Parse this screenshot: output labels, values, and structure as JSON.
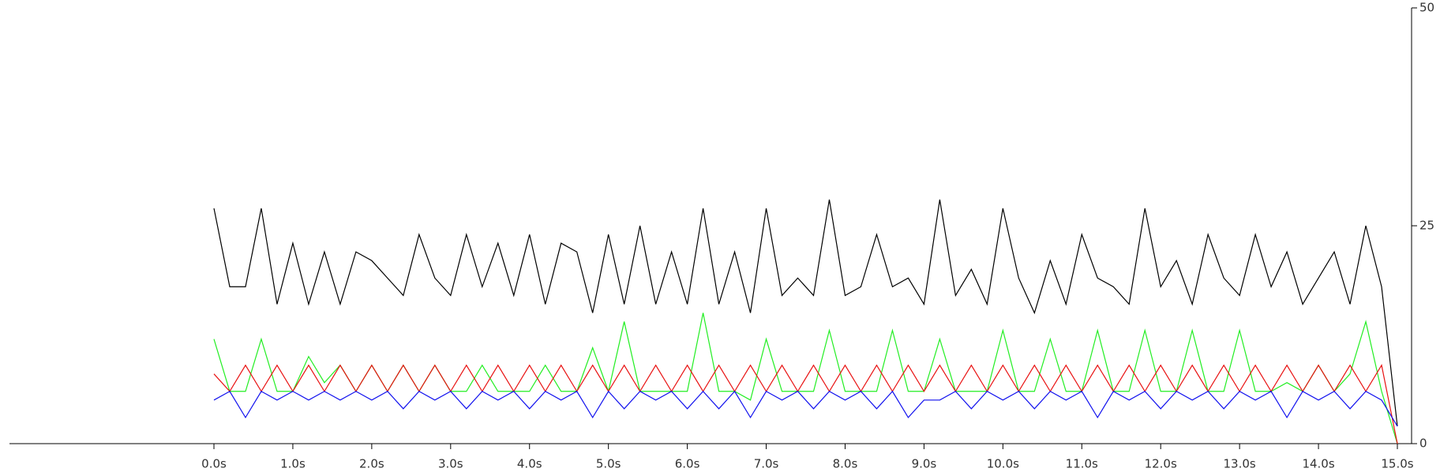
{
  "chart_data": {
    "type": "line",
    "x": [
      0,
      0.2,
      0.4,
      0.6,
      0.8,
      1.0,
      1.2,
      1.4,
      1.6,
      1.8,
      2.0,
      2.2,
      2.4,
      2.6,
      2.8,
      3.0,
      3.2,
      3.4,
      3.6,
      3.8,
      4.0,
      4.2,
      4.4,
      4.6,
      4.8,
      5.0,
      5.2,
      5.4,
      5.6,
      5.8,
      6.0,
      6.2,
      6.4,
      6.6,
      6.8,
      7.0,
      7.2,
      7.4,
      7.6,
      7.8,
      8.0,
      8.2,
      8.4,
      8.6,
      8.8,
      9.0,
      9.2,
      9.4,
      9.6,
      9.8,
      10.0,
      10.2,
      10.4,
      10.6,
      10.8,
      11.0,
      11.2,
      11.4,
      11.6,
      11.8,
      12.0,
      12.2,
      12.4,
      12.6,
      12.8,
      13.0,
      13.2,
      13.4,
      13.6,
      13.8,
      14.0,
      14.2,
      14.4,
      14.6,
      14.8,
      15.0
    ],
    "series": [
      {
        "color": "#000000",
        "values": [
          27,
          18,
          18,
          27,
          16,
          23,
          16,
          22,
          16,
          22,
          21,
          19,
          17,
          24,
          19,
          17,
          24,
          18,
          23,
          17,
          24,
          16,
          23,
          22,
          15,
          24,
          16,
          25,
          16,
          22,
          16,
          27,
          16,
          22,
          15,
          27,
          17,
          19,
          17,
          28,
          17,
          18,
          24,
          18,
          19,
          16,
          28,
          17,
          20,
          16,
          27,
          19,
          15,
          21,
          16,
          24,
          19,
          18,
          16,
          27,
          18,
          21,
          16,
          24,
          19,
          17,
          24,
          18,
          22,
          16,
          19,
          22,
          16,
          25,
          18,
          2
        ]
      },
      {
        "color": "#22ee22",
        "values": [
          12,
          6,
          6,
          12,
          6,
          6,
          10,
          7,
          9,
          6,
          9,
          6,
          9,
          6,
          9,
          6,
          6,
          9,
          6,
          6,
          6,
          9,
          6,
          6,
          11,
          6,
          14,
          6,
          6,
          6,
          6,
          15,
          6,
          6,
          5,
          12,
          6,
          6,
          6,
          13,
          6,
          6,
          6,
          13,
          6,
          6,
          12,
          6,
          6,
          6,
          13,
          6,
          6,
          12,
          6,
          6,
          13,
          6,
          6,
          13,
          6,
          6,
          13,
          6,
          6,
          13,
          6,
          6,
          7,
          6,
          9,
          6,
          8,
          14,
          6,
          0
        ]
      },
      {
        "color": "#e81010",
        "values": [
          8,
          6,
          9,
          6,
          9,
          6,
          9,
          6,
          9,
          6,
          9,
          6,
          9,
          6,
          9,
          6,
          9,
          6,
          9,
          6,
          9,
          6,
          9,
          6,
          9,
          6,
          9,
          6,
          9,
          6,
          9,
          6,
          9,
          6,
          9,
          6,
          9,
          6,
          9,
          6,
          9,
          6,
          9,
          6,
          9,
          6,
          9,
          6,
          9,
          6,
          9,
          6,
          9,
          6,
          9,
          6,
          9,
          6,
          9,
          6,
          9,
          6,
          9,
          6,
          9,
          6,
          9,
          6,
          9,
          6,
          9,
          6,
          9,
          6,
          9,
          0
        ]
      },
      {
        "color": "#1010ee",
        "values": [
          5,
          6,
          3,
          6,
          5,
          6,
          5,
          6,
          5,
          6,
          5,
          6,
          4,
          6,
          5,
          6,
          4,
          6,
          5,
          6,
          4,
          6,
          5,
          6,
          3,
          6,
          4,
          6,
          5,
          6,
          4,
          6,
          4,
          6,
          3,
          6,
          5,
          6,
          4,
          6,
          5,
          6,
          4,
          6,
          3,
          5,
          5,
          6,
          4,
          6,
          5,
          6,
          4,
          6,
          5,
          6,
          3,
          6,
          5,
          6,
          4,
          6,
          5,
          6,
          4,
          6,
          5,
          6,
          3,
          6,
          5,
          6,
          4,
          6,
          5,
          2
        ]
      }
    ],
    "xlim": [
      0,
      15
    ],
    "xticks": [
      {
        "value": 0,
        "label": "0.0s"
      },
      {
        "value": 1,
        "label": "1.0s"
      },
      {
        "value": 2,
        "label": "2.0s"
      },
      {
        "value": 3,
        "label": "3.0s"
      },
      {
        "value": 4,
        "label": "4.0s"
      },
      {
        "value": 5,
        "label": "5.0s"
      },
      {
        "value": 6,
        "label": "6.0s"
      },
      {
        "value": 7,
        "label": "7.0s"
      },
      {
        "value": 8,
        "label": "8.0s"
      },
      {
        "value": 9,
        "label": "9.0s"
      },
      {
        "value": 10,
        "label": "10.0s"
      },
      {
        "value": 11,
        "label": "11.0s"
      },
      {
        "value": 12,
        "label": "12.0s"
      },
      {
        "value": 13,
        "label": "13.0s"
      },
      {
        "value": 14,
        "label": "14.0s"
      },
      {
        "value": 15,
        "label": "15.0s"
      }
    ],
    "ylim": [
      0,
      50
    ],
    "yticks": [
      0,
      25,
      50
    ]
  }
}
